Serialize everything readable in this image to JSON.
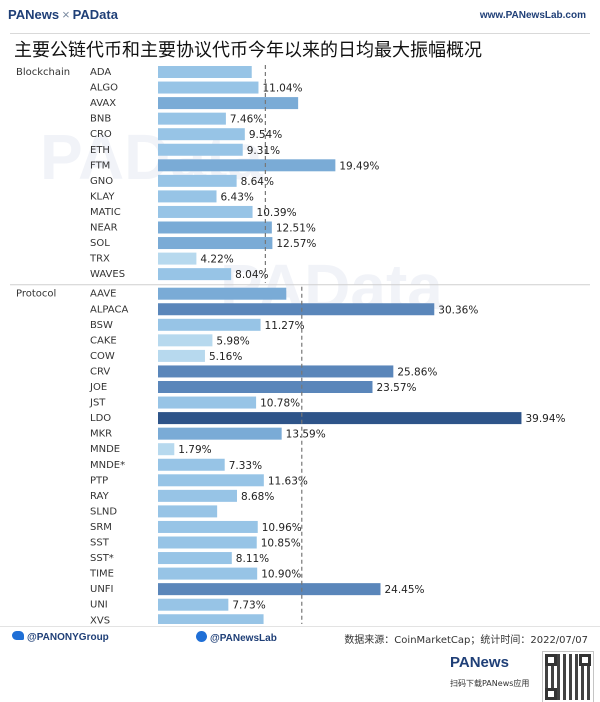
{
  "header": {
    "brand_left": "PANews",
    "brand_sep": "×",
    "brand_right": "PAData",
    "site": "www.PANewsLab.com"
  },
  "title": "主要公链代币和主要协议代币今年以来的日均最大振幅概况",
  "watermark": "PAData",
  "chart_data": {
    "type": "bar",
    "orientation": "horizontal",
    "unit": "%",
    "reference_line_note": "dashed vertical reference line per group",
    "groups": [
      {
        "name": "Blockchain",
        "categories": [
          "ADA",
          "ALGO",
          "AVAX",
          "BNB",
          "CRO",
          "ETH",
          "FTM",
          "GNO",
          "KLAY",
          "MATIC",
          "NEAR",
          "SOL",
          "TRX",
          "WAVES"
        ],
        "values": [
          10.3,
          11.04,
          15.4,
          7.46,
          9.54,
          9.31,
          19.49,
          8.64,
          6.43,
          10.39,
          12.51,
          12.57,
          4.22,
          8.04
        ],
        "labels": [
          "",
          "11.04%",
          "",
          "7.46%",
          "9.54%",
          "9.31%",
          "19.49%",
          "8.64%",
          "6.43%",
          "10.39%",
          "12.51%",
          "12.57%",
          "4.22%",
          "8.04%"
        ],
        "reference": 11.8
      },
      {
        "name": "Protocol",
        "categories": [
          "AAVE",
          "ALPACA",
          "BSW",
          "CAKE",
          "COW",
          "CRV",
          "JOE",
          "JST",
          "LDO",
          "MKR",
          "MNDE",
          "MNDE*",
          "PTP",
          "RAY",
          "SLND",
          "SRM",
          "SST",
          "SST*",
          "TIME",
          "UNFI",
          "UNI",
          "XVS"
        ],
        "values": [
          14.1,
          30.36,
          11.27,
          5.98,
          5.16,
          25.86,
          23.57,
          10.78,
          39.94,
          13.59,
          1.79,
          7.33,
          11.63,
          8.68,
          6.5,
          10.96,
          10.85,
          8.11,
          10.9,
          24.45,
          7.73,
          11.6
        ],
        "labels": [
          "",
          "30.36%",
          "11.27%",
          "5.98%",
          "5.16%",
          "25.86%",
          "23.57%",
          "10.78%",
          "39.94%",
          "13.59%",
          "1.79%",
          "7.33%",
          "11.63%",
          "8.68%",
          "",
          "10.96%",
          "10.85%",
          "8.11%",
          "10.90%",
          "24.45%",
          "7.73%",
          ""
        ],
        "reference": 15.8
      }
    ],
    "xlim": [
      0,
      45
    ],
    "colors": {
      "lightest": "#b7d9ee",
      "light": "#97c4e6",
      "mid": "#7aabd6",
      "dark": "#5a86ba",
      "darkest": "#2e5489"
    }
  },
  "footer": {
    "twitter": "@PANONYGroup",
    "facebook": "@PANewsLab",
    "source": "数据来源：CoinMarketCap；统计时间：2022/07/07"
  },
  "bottom": {
    "logo": "PANews",
    "caption": "扫码下载PANews应用"
  }
}
